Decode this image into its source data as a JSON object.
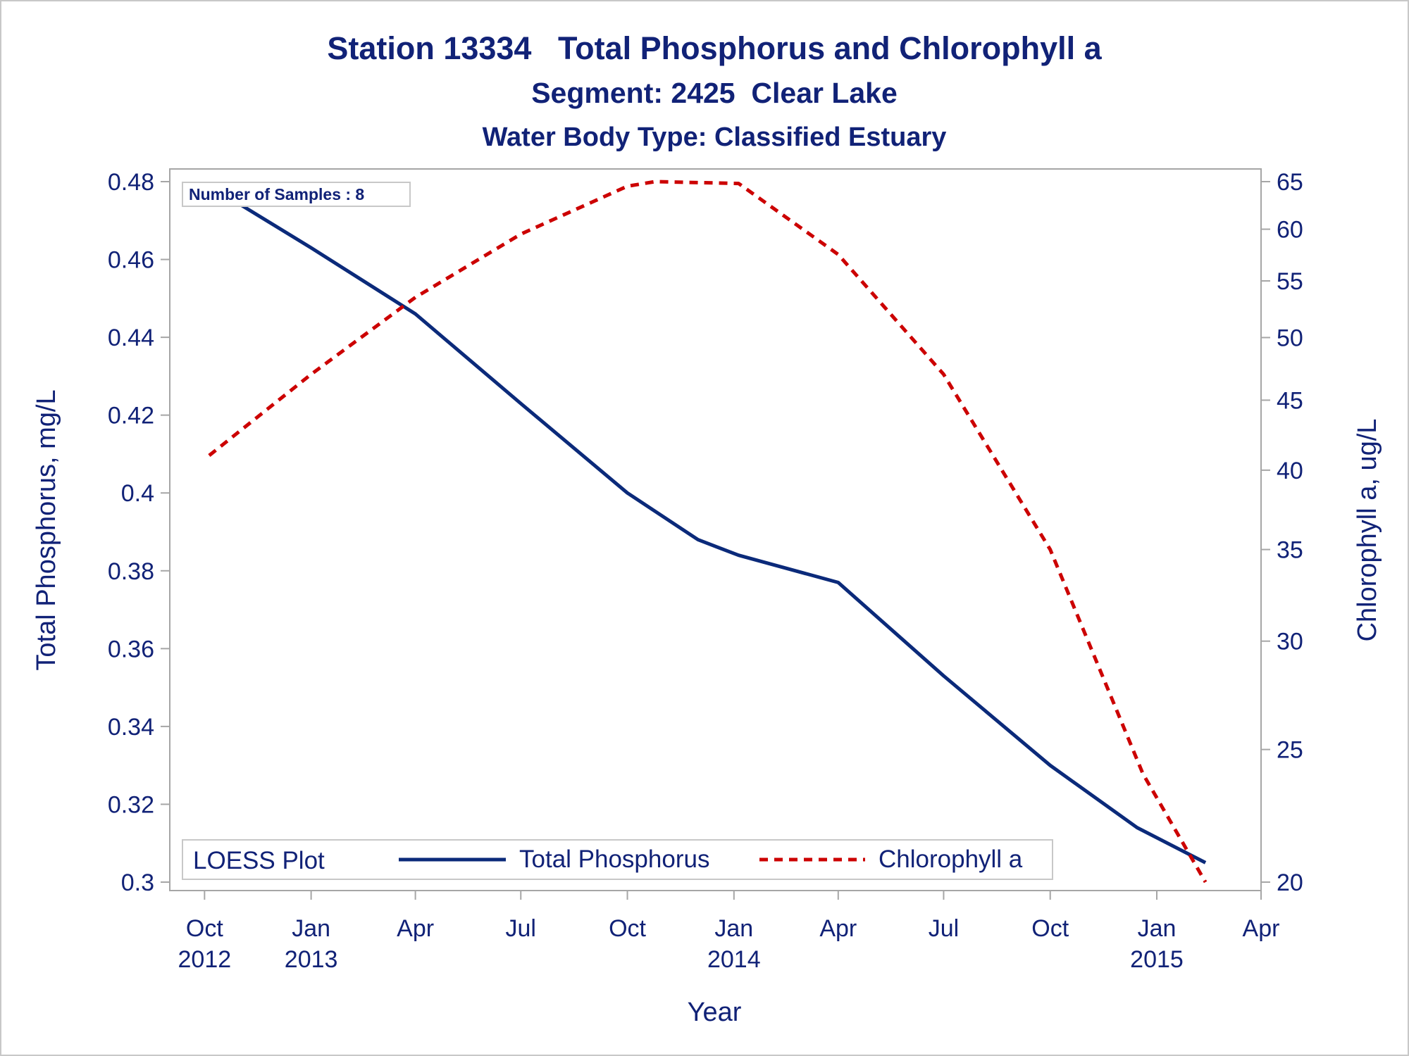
{
  "title": "Station 13334   Total Phosphorus and Chlorophyll a",
  "subtitle1": "Segment: 2425  Clear Lake",
  "subtitle2": "Water Body Type: Classified Estuary",
  "inset": "Number of Samples : 8",
  "legend_title": "LOESS Plot",
  "colors": {
    "text": "#112277",
    "phosphorus": "#0b2a7a",
    "chlorophyll": "#cc0000",
    "frame": "#a6a6a6"
  },
  "chart_data": {
    "type": "line",
    "xlabel": "Year",
    "ylabel": "Total Phosphorus, mg/L",
    "y2label": "Chlorophyll a, ug/L",
    "xlim": [
      "2012-09-01",
      "2015-04-01"
    ],
    "ylim": [
      0.3,
      0.48
    ],
    "y2lim": [
      20,
      65
    ],
    "y2_scale": "log",
    "x_ticks": [
      {
        "date": "2012-10-01",
        "line1": "Oct",
        "line2": "2012"
      },
      {
        "date": "2013-01-01",
        "line1": "Jan",
        "line2": "2013"
      },
      {
        "date": "2013-04-01",
        "line1": "Apr",
        "line2": ""
      },
      {
        "date": "2013-07-01",
        "line1": "Jul",
        "line2": ""
      },
      {
        "date": "2013-10-01",
        "line1": "Oct",
        "line2": ""
      },
      {
        "date": "2014-01-01",
        "line1": "Jan",
        "line2": "2014"
      },
      {
        "date": "2014-04-01",
        "line1": "Apr",
        "line2": ""
      },
      {
        "date": "2014-07-01",
        "line1": "Jul",
        "line2": ""
      },
      {
        "date": "2014-10-01",
        "line1": "Oct",
        "line2": ""
      },
      {
        "date": "2015-01-01",
        "line1": "Jan",
        "line2": "2015"
      },
      {
        "date": "2015-04-01",
        "line1": "Apr",
        "line2": ""
      }
    ],
    "y_ticks": [
      "0.48",
      "0.46",
      "0.44",
      "0.42",
      "0.4",
      "0.38",
      "0.36",
      "0.34",
      "0.32",
      "0.3"
    ],
    "y2_ticks": [
      "65",
      "60",
      "55",
      "50",
      "45",
      "40",
      "35",
      "30",
      "25",
      "20"
    ],
    "grid": false,
    "legend_position": "bottom-left",
    "series": [
      {
        "name": "Total Phosphorus",
        "axis": "left",
        "style": "solid",
        "points": [
          [
            "2012-10-05",
            0.479
          ],
          [
            "2013-01-01",
            0.463
          ],
          [
            "2013-04-01",
            0.446
          ],
          [
            "2013-07-01",
            0.423
          ],
          [
            "2013-10-01",
            0.4
          ],
          [
            "2013-12-01",
            0.388
          ],
          [
            "2014-01-05",
            0.384
          ],
          [
            "2014-04-01",
            0.377
          ],
          [
            "2014-07-01",
            0.353
          ],
          [
            "2014-10-01",
            0.33
          ],
          [
            "2014-12-15",
            0.314
          ],
          [
            "2015-02-12",
            0.305
          ]
        ]
      },
      {
        "name": "Chlorophyll a",
        "axis": "right",
        "style": "dashed",
        "points": [
          [
            "2012-10-05",
            41
          ],
          [
            "2013-01-01",
            47
          ],
          [
            "2013-04-01",
            53.5
          ],
          [
            "2013-07-01",
            59.5
          ],
          [
            "2013-10-01",
            64.5
          ],
          [
            "2013-10-25",
            65
          ],
          [
            "2014-01-05",
            64.8
          ],
          [
            "2014-04-01",
            57.5
          ],
          [
            "2014-07-01",
            47
          ],
          [
            "2014-10-01",
            35
          ],
          [
            "2014-12-20",
            24
          ],
          [
            "2015-02-12",
            20
          ]
        ]
      }
    ]
  }
}
